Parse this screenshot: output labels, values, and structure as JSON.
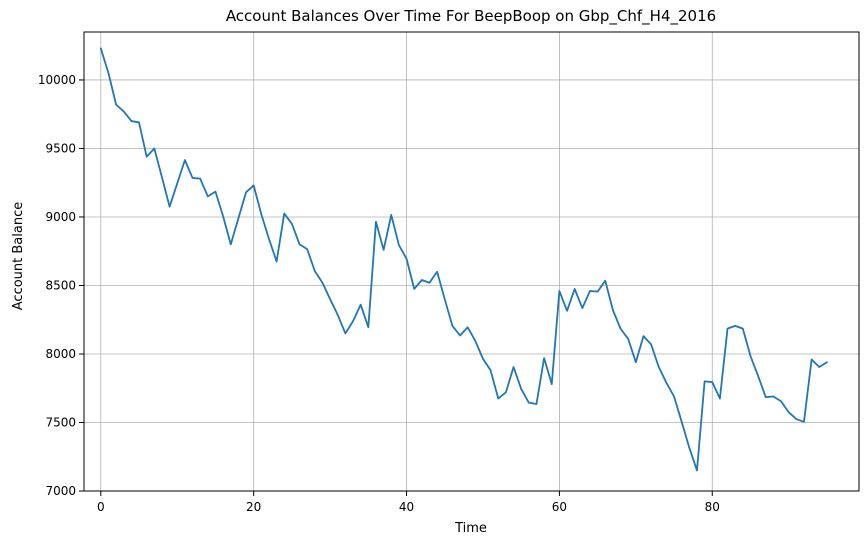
{
  "chart_data": {
    "type": "line",
    "title": "Account Balances Over Time For BeepBoop on Gbp_Chf_H4_2016",
    "xlabel": "Time",
    "ylabel": "Account Balance",
    "xlim": [
      -2.2,
      99.2
    ],
    "ylim": [
      7000,
      10350
    ],
    "xticks": [
      0,
      20,
      40,
      60,
      80
    ],
    "yticks": [
      7000,
      7500,
      8000,
      8500,
      9000,
      9500,
      10000
    ],
    "grid": true,
    "line_color": "#1f77b4",
    "series": [
      {
        "values": [
          10230,
          10050,
          9820,
          9770,
          9700,
          9690,
          9440,
          9500,
          9290,
          9075,
          9245,
          9415,
          9285,
          9280,
          9150,
          9185,
          9005,
          8800,
          8990,
          9180,
          9230,
          9020,
          8840,
          8675,
          9025,
          8950,
          8800,
          8765,
          8605,
          8520,
          8400,
          8285,
          8150,
          8240,
          8360,
          8195,
          8965,
          8760,
          9015,
          8795,
          8695,
          8475,
          8540,
          8520,
          8600,
          8400,
          8205,
          8135,
          8195,
          8095,
          7965,
          7880,
          7675,
          7720,
          7905,
          7745,
          7645,
          7635,
          7970,
          7780,
          8460,
          8315,
          8475,
          8335,
          8460,
          8455,
          8535,
          8320,
          8185,
          8110,
          7940,
          8130,
          8070,
          7905,
          7790,
          7690,
          7505,
          7315,
          7150,
          7800,
          7795,
          7675,
          8185,
          8205,
          8185,
          7985,
          7840,
          7685,
          7690,
          7655,
          7575,
          7525,
          7505,
          7960,
          7905,
          7940
        ]
      }
    ]
  }
}
